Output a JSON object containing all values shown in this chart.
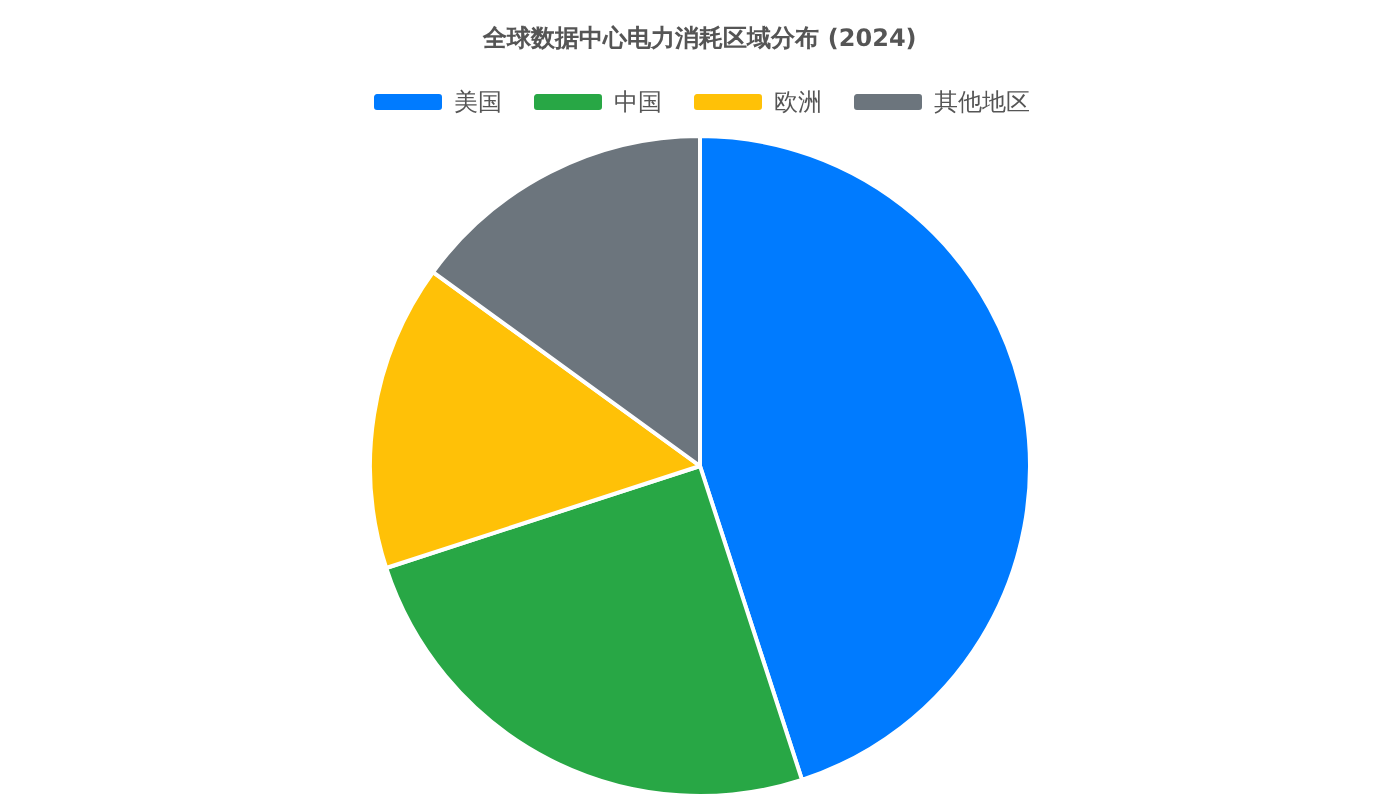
{
  "chart_data": {
    "type": "pie",
    "title": "全球数据中心电力消耗区域分布 (2024)",
    "categories": [
      "美国",
      "中国",
      "欧洲",
      "其他地区"
    ],
    "values": [
      45,
      25,
      15,
      15
    ],
    "colors": [
      "#007bff",
      "#28a745",
      "#ffc107",
      "#6c757d"
    ],
    "legend": "top"
  }
}
